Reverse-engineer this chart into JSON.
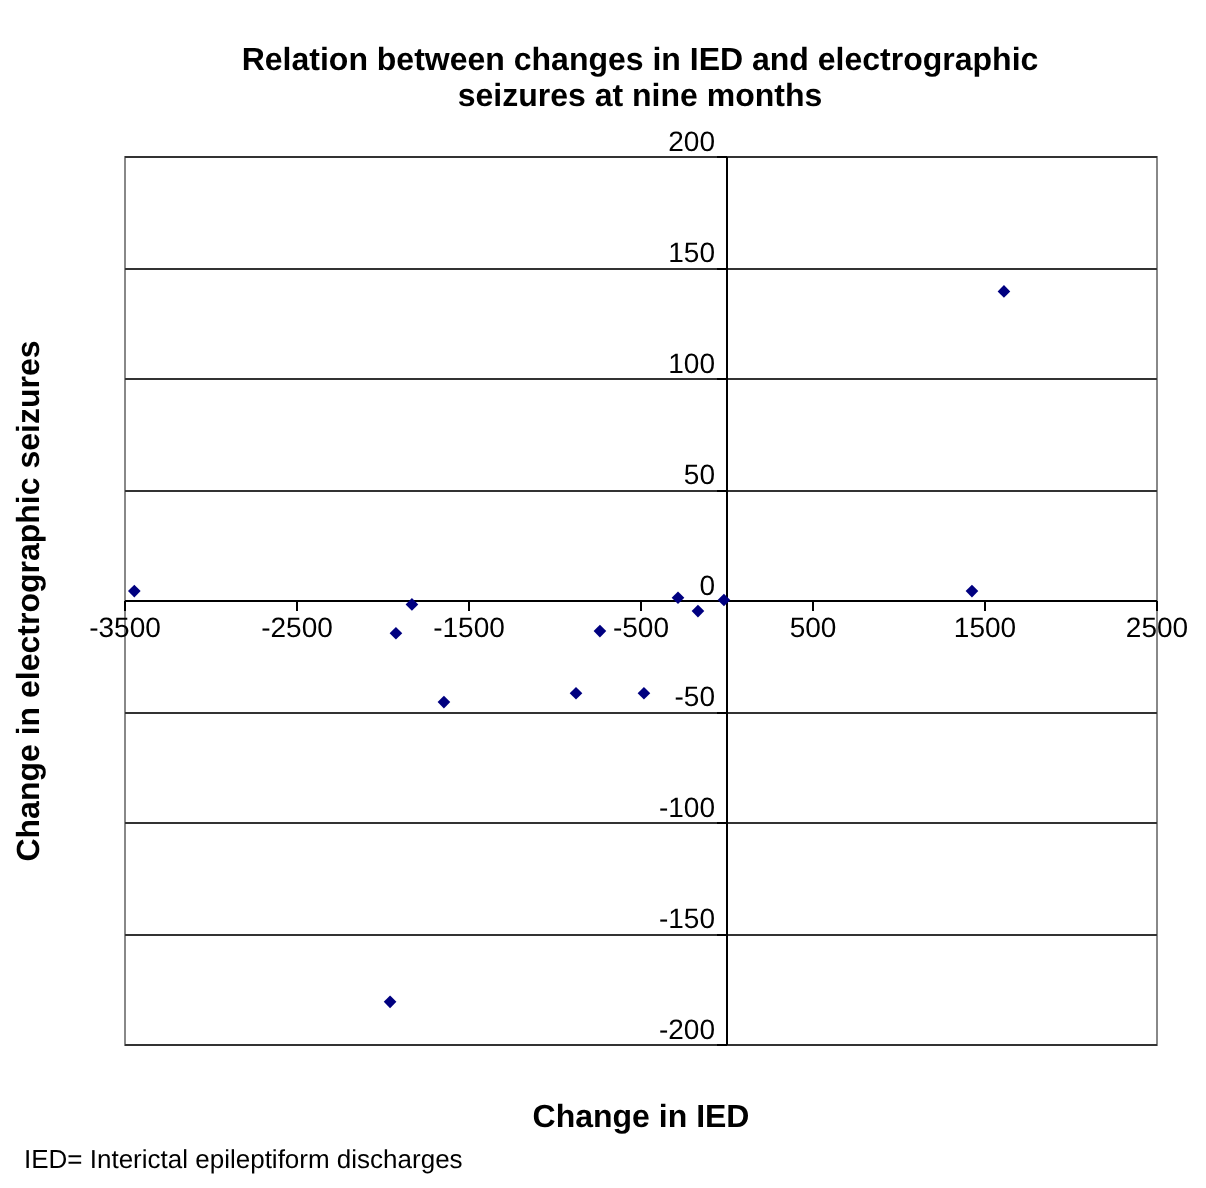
{
  "chart_data": {
    "type": "scatter",
    "title": "Relation between changes in IED and electrographic seizures at nine months",
    "xlabel": "Change in IED",
    "ylabel": "Change in electrographic seizures",
    "x": [
      -3440,
      -1826,
      -1919,
      -1640,
      -1953,
      -872,
      -477,
      -733,
      -279,
      -163,
      -12,
      1430,
      1616
    ],
    "series": [
      {
        "color": "#000080",
        "values": [
          4,
          -2,
          -15,
          -46,
          -181,
          -42,
          -42,
          -14,
          1,
          -5,
          0,
          4,
          139
        ]
      }
    ],
    "xlim": [
      -3500,
      2500
    ],
    "xticks": [
      -3500,
      -2500,
      -1500,
      -500,
      500,
      1500,
      2500
    ],
    "ylim": [
      -200,
      200
    ],
    "yticks": [
      -200,
      -150,
      -100,
      -50,
      0,
      50,
      100,
      150,
      200
    ],
    "grid": "y",
    "legend": false,
    "marker": "diamond",
    "annotations": [
      "IED= Interictal epileptiform discharges"
    ]
  }
}
